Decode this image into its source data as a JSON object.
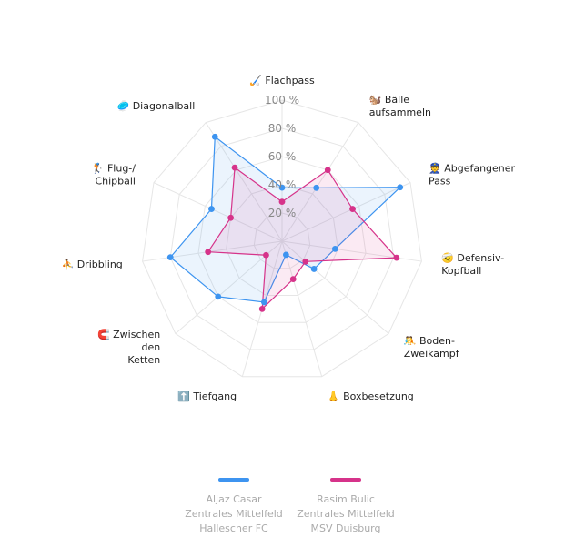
{
  "chart_data": {
    "type": "radar",
    "axes": [
      {
        "icon": "🏑",
        "lines": [
          "Flachpass"
        ]
      },
      {
        "icon": "🐿️",
        "lines": [
          "Bälle",
          "aufsammeln"
        ]
      },
      {
        "icon": "👮",
        "lines": [
          "Abgefangener",
          "Pass"
        ]
      },
      {
        "icon": "🤕",
        "lines": [
          "Defensiv-",
          "Kopfball"
        ]
      },
      {
        "icon": "🤼",
        "lines": [
          "Boden-",
          "Zweikampf"
        ]
      },
      {
        "icon": "👃",
        "lines": [
          "Boxbesetzung"
        ]
      },
      {
        "icon": "⬆️",
        "lines": [
          "Tiefgang"
        ]
      },
      {
        "icon": "🧲",
        "lines": [
          "Zwischen",
          "den",
          "Ketten"
        ]
      },
      {
        "icon": "⛹️",
        "lines": [
          "Dribbling"
        ]
      },
      {
        "icon": "🏌️",
        "lines": [
          "Flug-/",
          "Chipball"
        ]
      },
      {
        "icon": "🥏",
        "lines": [
          "Diagonalball"
        ]
      }
    ],
    "ticks": [
      "20 %",
      "40 %",
      "60 %",
      "80 %",
      "100 %"
    ],
    "range": [
      0,
      100
    ],
    "series": [
      {
        "name": "Aljaz Casar",
        "color": "#3d94f0",
        "values": [
          38,
          45,
          92,
          38,
          30,
          10,
          45,
          60,
          80,
          55,
          88
        ]
      },
      {
        "name": "Rasim Bulic",
        "color": "#d6338a",
        "values": [
          28,
          60,
          55,
          82,
          22,
          28,
          50,
          15,
          53,
          40,
          62
        ]
      }
    ]
  },
  "legend": [
    {
      "color": "#3d94f0",
      "lines": [
        "Aljaz Casar",
        "Zentrales Mittelfeld",
        "Hallescher FC"
      ]
    },
    {
      "color": "#d6338a",
      "lines": [
        "Rasim Bulic",
        "Zentrales Mittelfeld",
        "MSV Duisburg"
      ]
    }
  ]
}
